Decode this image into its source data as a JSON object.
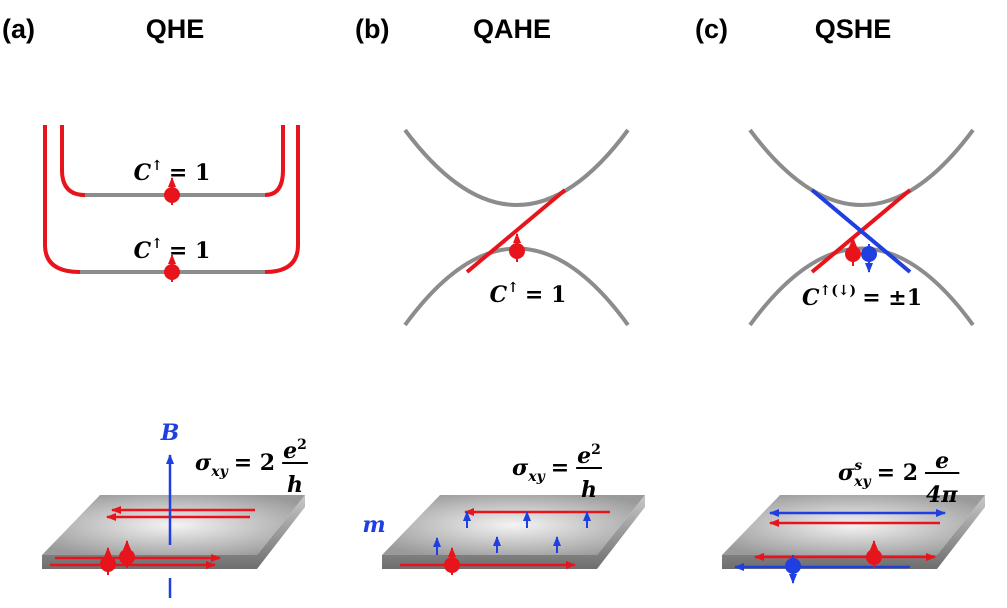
{
  "panels": [
    {
      "label": "(a)",
      "title": "QHE",
      "levels": [
        {
          "symbol": "C",
          "sup": "↑",
          "rhs": "= 1"
        },
        {
          "symbol": "C",
          "sup": "↑",
          "rhs": "= 1"
        }
      ],
      "conductance": {
        "symbol": "σ",
        "sub": "xy",
        "rhs": "= 2",
        "numerator": "e",
        "numerator_sup": "2",
        "denominator": "h"
      },
      "field": "B"
    },
    {
      "label": "(b)",
      "title": "QAHE",
      "levels": [
        {
          "symbol": "C",
          "sup": "↑",
          "rhs": "= 1"
        }
      ],
      "conductance": {
        "symbol": "σ",
        "sub": "xy",
        "rhs": "=",
        "numerator": "e",
        "numerator_sup": "2",
        "denominator": "h"
      },
      "field": "m"
    },
    {
      "label": "(c)",
      "title": "QSHE",
      "levels": [
        {
          "symbol": "C",
          "sup": "↑(↓)",
          "rhs": "= ±1"
        }
      ],
      "conductance": {
        "symbol": "σ",
        "sup": "s",
        "sub": "xy",
        "rhs": "= 2",
        "numerator": "e",
        "denominator": "4π"
      }
    }
  ]
}
